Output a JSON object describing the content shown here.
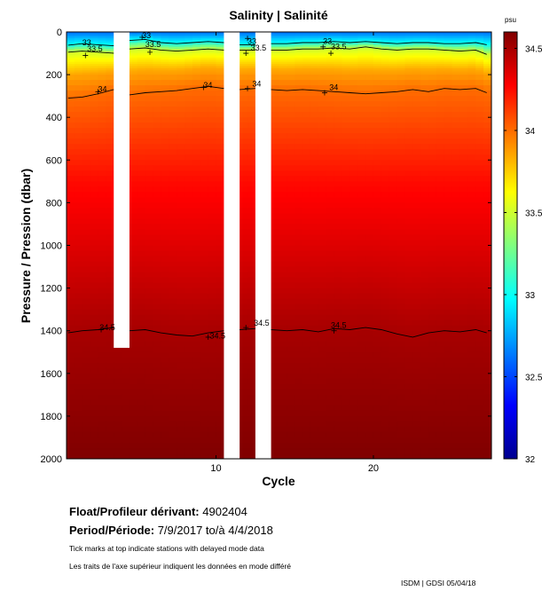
{
  "chart_data": {
    "type": "heatmap",
    "title": "Salinity | Salinité",
    "xlabel": "Cycle",
    "ylabel": "Pressure / Pression (dbar)",
    "xlim": [
      0.5,
      27.5
    ],
    "ylim": [
      2000,
      0
    ],
    "xticks": [
      10,
      20
    ],
    "yticks": [
      0,
      200,
      400,
      600,
      800,
      1000,
      1200,
      1400,
      1600,
      1800,
      2000
    ],
    "colorbar": {
      "label": "psu",
      "range": [
        32,
        34.6
      ],
      "ticks": [
        {
          "value": 32,
          "label": "32"
        },
        {
          "value": 32.5,
          "label": "32.5"
        },
        {
          "value": 33,
          "label": "33"
        },
        {
          "value": 33.5,
          "label": "33.5"
        },
        {
          "value": 34,
          "label": "34"
        },
        {
          "value": 34.5,
          "label": "34.5"
        }
      ]
    },
    "gaps": [
      {
        "from_cycle": 3.5,
        "to_cycle": 4.5,
        "from_pressure": 0,
        "to_pressure": 1480
      },
      {
        "from_cycle": 10.5,
        "to_cycle": 11.5,
        "from_pressure": 0,
        "to_pressure": 2000
      },
      {
        "from_cycle": 12.5,
        "to_cycle": 13.5,
        "from_pressure": 0,
        "to_pressure": 2000
      }
    ],
    "contours": [
      {
        "level": 33,
        "label": "33",
        "label_points": [
          {
            "x": 1.5,
            "y": 45
          },
          {
            "x": 5.3,
            "y": 12
          },
          {
            "x": 12,
            "y": 40
          },
          {
            "x": 16.8,
            "y": 40
          }
        ],
        "segments": [
          {
            "x": [
              0.6,
              1.5,
              2.5,
              3.5
            ],
            "y": [
              62,
              55,
              60,
              65
            ]
          },
          {
            "x": [
              4.5,
              5.5,
              6.5,
              7.5,
              8.5,
              9.5,
              10.5
            ],
            "y": [
              40,
              35,
              50,
              55,
              50,
              45,
              50
            ]
          },
          {
            "x": [
              11.5,
              12.5
            ],
            "y": [
              60,
              60
            ]
          },
          {
            "x": [
              13.5,
              14.5,
              15.5,
              16.5,
              17.5,
              18.5,
              19.5,
              20.5,
              21.5,
              22.5,
              23.5,
              24.5,
              25.5,
              26.5,
              27.2
            ],
            "y": [
              55,
              55,
              50,
              50,
              45,
              50,
              45,
              50,
              55,
              50,
              50,
              55,
              55,
              50,
              60
            ]
          }
        ]
      },
      {
        "level": 33.5,
        "label": "33.5",
        "label_points": [
          {
            "x": 1.8,
            "y": 75
          },
          {
            "x": 5.5,
            "y": 55
          },
          {
            "x": 12.2,
            "y": 70
          },
          {
            "x": 17.3,
            "y": 65
          }
        ],
        "segments": [
          {
            "x": [
              0.6,
              1.5,
              2.5,
              3.5
            ],
            "y": [
              95,
              90,
              95,
              100
            ]
          },
          {
            "x": [
              4.5,
              5.5,
              6.5,
              7.5,
              8.5,
              9.5,
              10.5
            ],
            "y": [
              80,
              75,
              85,
              90,
              85,
              80,
              85
            ]
          },
          {
            "x": [
              11.5,
              12.5
            ],
            "y": [
              85,
              85
            ]
          },
          {
            "x": [
              13.5,
              14.5,
              15.5,
              16.5,
              17.5,
              18.5,
              19.5,
              20.5,
              21.5,
              22.5,
              23.5,
              24.5,
              25.5,
              26.5,
              27.2
            ],
            "y": [
              85,
              85,
              80,
              80,
              75,
              80,
              70,
              80,
              85,
              80,
              80,
              85,
              90,
              85,
              105
            ]
          }
        ]
      },
      {
        "level": 34,
        "label": "34",
        "label_points": [
          {
            "x": 2.5,
            "y": 265
          },
          {
            "x": 9.2,
            "y": 245
          },
          {
            "x": 12.3,
            "y": 240
          },
          {
            "x": 17.2,
            "y": 255
          }
        ],
        "segments": [
          {
            "x": [
              0.6,
              1.5,
              2.5,
              3.5
            ],
            "y": [
              310,
              305,
              290,
              270
            ]
          },
          {
            "x": [
              4.5,
              5.5,
              6.5,
              7.5,
              8.5,
              9.5,
              10.5
            ],
            "y": [
              295,
              285,
              280,
              275,
              265,
              255,
              265
            ]
          },
          {
            "x": [
              11.5,
              12.5
            ],
            "y": [
              270,
              265
            ]
          },
          {
            "x": [
              13.5,
              14.5,
              15.5,
              16.5,
              17.5,
              18.5,
              19.5,
              20.5,
              21.5,
              22.5,
              23.5,
              24.5,
              25.5,
              26.5,
              27.2
            ],
            "y": [
              270,
              275,
              270,
              275,
              280,
              285,
              290,
              285,
              280,
              270,
              280,
              265,
              270,
              265,
              285
            ]
          }
        ]
      },
      {
        "level": 34.5,
        "label": "34.5",
        "label_points": [
          {
            "x": 2.6,
            "y": 1380
          },
          {
            "x": 9.6,
            "y": 1420
          },
          {
            "x": 12.4,
            "y": 1360
          },
          {
            "x": 17.3,
            "y": 1370
          }
        ],
        "segments": [
          {
            "x": [
              0.6,
              1.5,
              2.5,
              3.5
            ],
            "y": [
              1410,
              1400,
              1395,
              1385
            ]
          },
          {
            "x": [
              4.5,
              5.5,
              6.5,
              7.5,
              8.5,
              9.5,
              10.5
            ],
            "y": [
              1400,
              1395,
              1410,
              1420,
              1425,
              1410,
              1400
            ]
          },
          {
            "x": [
              11.5,
              12.5
            ],
            "y": [
              1395,
              1390
            ]
          },
          {
            "x": [
              13.5,
              14.5,
              15.5,
              16.5,
              17.5,
              18.5,
              19.5,
              20.5,
              21.5,
              22.5,
              23.5,
              24.5,
              25.5,
              26.5,
              27.2
            ],
            "y": [
              1395,
              1400,
              1395,
              1405,
              1390,
              1395,
              1385,
              1395,
              1415,
              1430,
              1410,
              1400,
              1405,
              1395,
              1410
            ]
          }
        ]
      }
    ],
    "profile_ticks": [
      {
        "x": 1.7,
        "y": 110
      },
      {
        "x": 2.5,
        "y": 280
      },
      {
        "x": 2.7,
        "y": 1395
      },
      {
        "x": 5.3,
        "y": 25
      },
      {
        "x": 5.8,
        "y": 95
      },
      {
        "x": 9.2,
        "y": 260
      },
      {
        "x": 9.5,
        "y": 1430
      },
      {
        "x": 12.0,
        "y": 30
      },
      {
        "x": 11.9,
        "y": 100
      },
      {
        "x": 12.0,
        "y": 265
      },
      {
        "x": 11.9,
        "y": 1385
      },
      {
        "x": 16.8,
        "y": 70
      },
      {
        "x": 17.3,
        "y": 100
      },
      {
        "x": 16.9,
        "y": 285
      },
      {
        "x": 17.5,
        "y": 1400
      }
    ]
  },
  "info": {
    "float_label": "Float/Profileur dérivant:",
    "float_id": "4902404",
    "period_label": "Period/Période:",
    "period_value": "7/9/2017  to/à  4/4/2018",
    "note_en": "Tick marks at top indicate stations with delayed mode data",
    "note_fr": "Les traits de l'axe supérieur indiquent les données en mode différé",
    "credit": "ISDM | GDSI  05/04/18"
  }
}
